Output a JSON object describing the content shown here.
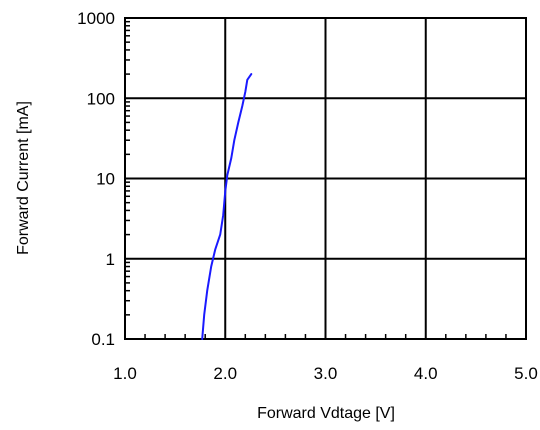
{
  "chart_data": {
    "type": "line",
    "title": "",
    "xlabel": "Forward Vdtage [V]",
    "ylabel": "Forward Current [mA]",
    "xlim": [
      1.0,
      5.0
    ],
    "ylim": [
      0.1,
      1000
    ],
    "y_scale": "log",
    "grid": true,
    "x_ticks": [
      "1.0",
      "2.0",
      "3.0",
      "4.0",
      "5.0"
    ],
    "y_ticks": [
      "0.1",
      "1",
      "10",
      "100",
      "1000"
    ],
    "series": [
      {
        "color": "#1a1aff",
        "x": [
          1.77,
          1.79,
          1.82,
          1.86,
          1.9,
          1.95,
          1.98,
          2.0,
          2.02,
          2.06,
          2.09,
          2.13,
          2.17,
          2.2,
          2.22,
          2.26
        ],
        "y": [
          0.1,
          0.2,
          0.4,
          0.8,
          1.3,
          2.0,
          3.5,
          7.0,
          11.0,
          18.0,
          30.0,
          50.0,
          80.0,
          120.0,
          170.0,
          200.0
        ]
      }
    ]
  }
}
